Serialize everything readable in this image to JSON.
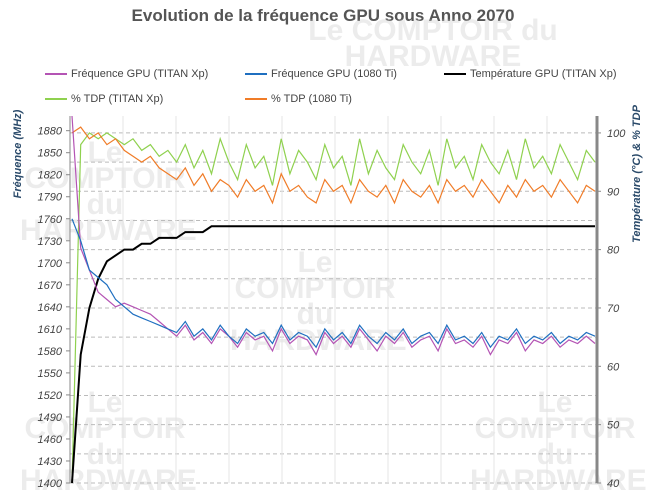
{
  "chart_data": {
    "type": "line",
    "title": "Evolution de la fréquence GPU sous Anno 2070",
    "ylabel": "Fréquence (MHz)",
    "y2label": "Température (°C) & % TDP",
    "xlabel": "",
    "ylim": [
      1400,
      1900
    ],
    "y2lim": [
      40,
      102.9
    ],
    "yticks": [
      1400,
      1430,
      1460,
      1490,
      1520,
      1550,
      1580,
      1610,
      1640,
      1670,
      1700,
      1730,
      1760,
      1790,
      1820,
      1850,
      1880
    ],
    "y2ticks": [
      40,
      50,
      60,
      70,
      80,
      90,
      100
    ],
    "legend_position": "top",
    "series": [
      {
        "name": "Fréquence GPU (TITAN Xp)",
        "axis": "left",
        "color": "#b454b4",
        "values": [
          1900,
          1720,
          1690,
          1660,
          1650,
          1640,
          1645,
          1640,
          1635,
          1630,
          1620,
          1610,
          1600,
          1615,
          1595,
          1605,
          1590,
          1610,
          1600,
          1585,
          1605,
          1595,
          1600,
          1580,
          1610,
          1590,
          1600,
          1595,
          1575,
          1605,
          1590,
          1600,
          1585,
          1610,
          1595,
          1580,
          1600,
          1590,
          1605,
          1585,
          1595,
          1600,
          1580,
          1610,
          1590,
          1595,
          1585,
          1600,
          1575,
          1595,
          1590,
          1605,
          1580,
          1595,
          1590,
          1600,
          1585,
          1595,
          1590,
          1600,
          1590
        ]
      },
      {
        "name": "Fréquence GPU (1080 Ti)",
        "axis": "left",
        "color": "#1f6fc0",
        "values": [
          1760,
          1730,
          1690,
          1680,
          1670,
          1650,
          1640,
          1630,
          1625,
          1620,
          1615,
          1610,
          1605,
          1620,
          1600,
          1610,
          1595,
          1615,
          1600,
          1590,
          1610,
          1600,
          1605,
          1590,
          1615,
          1595,
          1605,
          1600,
          1585,
          1610,
          1595,
          1605,
          1590,
          1615,
          1600,
          1590,
          1605,
          1595,
          1610,
          1590,
          1600,
          1605,
          1590,
          1615,
          1595,
          1600,
          1590,
          1605,
          1585,
          1600,
          1595,
          1610,
          1590,
          1600,
          1595,
          1605,
          1590,
          1600,
          1595,
          1605,
          1600
        ]
      },
      {
        "name": "Température GPU  (TITAN Xp)",
        "axis": "right",
        "color": "#000000",
        "values": [
          40,
          62,
          70,
          75,
          78,
          79,
          80,
          80,
          81,
          81,
          82,
          82,
          82,
          83,
          83,
          83,
          84,
          84,
          84,
          84,
          84,
          84,
          84,
          84,
          84,
          84,
          84,
          84,
          84,
          84,
          84,
          84,
          84,
          84,
          84,
          84,
          84,
          84,
          84,
          84,
          84,
          84,
          84,
          84,
          84,
          84,
          84,
          84,
          84,
          84,
          84,
          84,
          84,
          84,
          84,
          84,
          84,
          84,
          84,
          84,
          84
        ]
      },
      {
        "name": "% TDP (TITAN Xp)",
        "axis": "right",
        "color": "#8fd14f",
        "values": [
          40,
          98,
          100,
          99,
          100,
          99,
          98,
          99,
          97,
          98,
          96,
          97,
          95,
          98,
          94,
          97,
          93,
          99,
          95,
          92,
          98,
          94,
          96,
          91,
          99,
          93,
          97,
          95,
          92,
          98,
          94,
          96,
          91,
          99,
          93,
          97,
          94,
          92,
          98,
          95,
          93,
          97,
          91,
          99,
          94,
          96,
          92,
          98,
          95,
          93,
          97,
          92,
          99,
          94,
          96,
          93,
          98,
          95,
          92,
          97,
          95
        ]
      },
      {
        "name": "% TDP (1080 Ti)",
        "axis": "right",
        "color": "#f07c28",
        "values": [
          100,
          101,
          99,
          100,
          98,
          99,
          97,
          96,
          95,
          96,
          94,
          93,
          92,
          94,
          91,
          93,
          90,
          92,
          91,
          89,
          92,
          90,
          91,
          88,
          93,
          90,
          91,
          89,
          88,
          92,
          90,
          91,
          88,
          92,
          90,
          89,
          91,
          88,
          92,
          90,
          89,
          91,
          88,
          92,
          90,
          91,
          89,
          92,
          90,
          88,
          91,
          89,
          92,
          90,
          91,
          89,
          92,
          90,
          88,
          91,
          90
        ]
      }
    ]
  },
  "watermark": "Le COMPTOIR du HARDWARE"
}
